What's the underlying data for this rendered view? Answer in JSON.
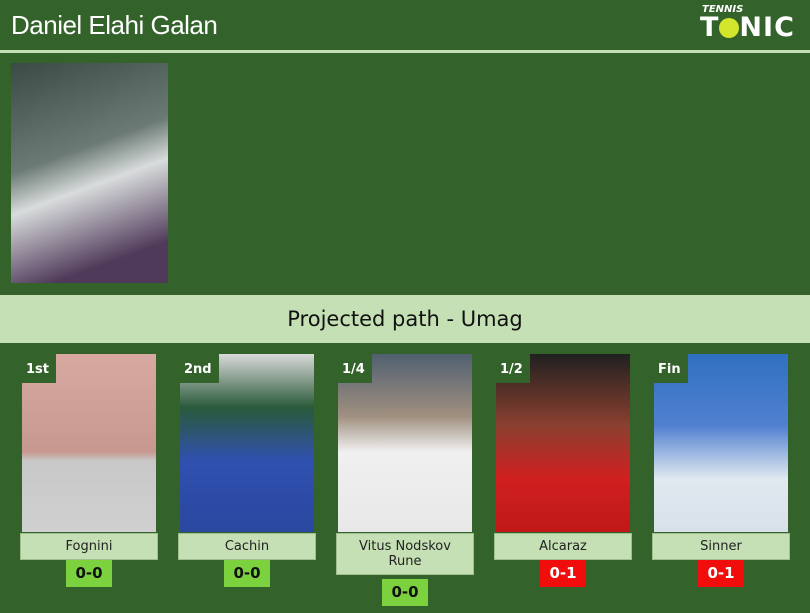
{
  "header": {
    "title": "Daniel Elahi Galan",
    "logo_top": "TENNIS",
    "logo_main_1": "T",
    "logo_main_2": "NIC"
  },
  "band": {
    "title": "Projected path - Umag"
  },
  "colors": {
    "background": "#33622a",
    "band": "#c5e0b4",
    "win": "#7cd13f",
    "loss": "#f20d0d"
  },
  "path": [
    {
      "round": "1st",
      "name": "Fognini",
      "score": "0-0",
      "result": "win"
    },
    {
      "round": "2nd",
      "name": "Cachin",
      "score": "0-0",
      "result": "win"
    },
    {
      "round": "1/4",
      "name": "Vitus Nodskov Rune",
      "score": "0-0",
      "result": "win"
    },
    {
      "round": "1/2",
      "name": "Alcaraz",
      "score": "0-1",
      "result": "loss"
    },
    {
      "round": "Fin",
      "name": "Sinner",
      "score": "0-1",
      "result": "loss"
    }
  ]
}
